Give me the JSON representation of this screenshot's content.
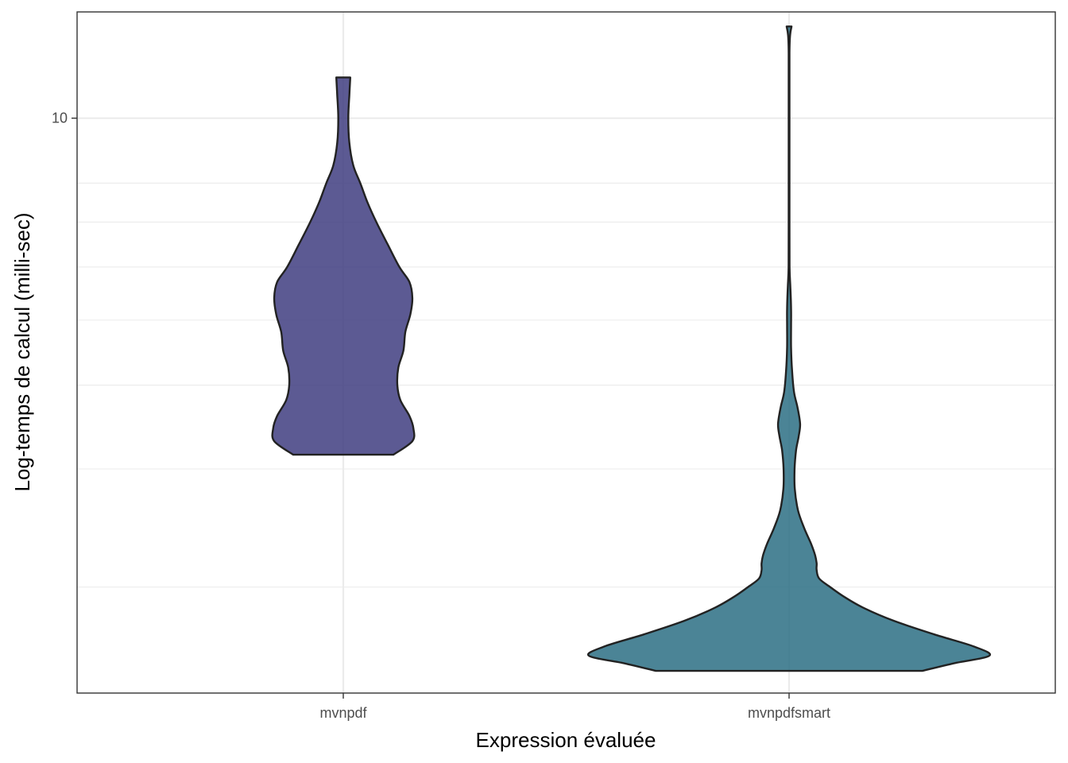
{
  "chart_data": {
    "type": "violin",
    "xlabel": "Expression évaluée",
    "ylabel": "Log-temps de calcul (milli-sec)",
    "y_scale": "log10",
    "ylim": [
      1.39,
      14.4
    ],
    "y_major_ticks": [
      10
    ],
    "y_major_tick_labels": [
      "10"
    ],
    "y_minor_gridlines": [
      2,
      3,
      4,
      5,
      6,
      7,
      8
    ],
    "grid": true,
    "categories": [
      "mvnpdf",
      "mvnpdfsmart"
    ],
    "series": [
      {
        "category": "mvnpdf",
        "color": "#3F3D80",
        "min": 3.15,
        "max": 11.5,
        "density_profile": [
          [
            3.15,
            0.5
          ],
          [
            3.3,
            0.69
          ],
          [
            3.45,
            0.7
          ],
          [
            3.6,
            0.66
          ],
          [
            3.8,
            0.57
          ],
          [
            4.0,
            0.54
          ],
          [
            4.25,
            0.55
          ],
          [
            4.5,
            0.6
          ],
          [
            4.8,
            0.62
          ],
          [
            5.1,
            0.67
          ],
          [
            5.4,
            0.69
          ],
          [
            5.7,
            0.66
          ],
          [
            6.0,
            0.56
          ],
          [
            6.5,
            0.44
          ],
          [
            7.0,
            0.33
          ],
          [
            7.5,
            0.24
          ],
          [
            8.0,
            0.17
          ],
          [
            8.5,
            0.1
          ],
          [
            9.2,
            0.06
          ],
          [
            10.0,
            0.05
          ],
          [
            10.8,
            0.06
          ],
          [
            11.5,
            0.07
          ]
        ]
      },
      {
        "category": "mvnpdfsmart",
        "color": "#2B6F84",
        "min": 1.5,
        "max": 13.7,
        "density_profile": [
          [
            1.5,
            1.33
          ],
          [
            1.54,
            1.65
          ],
          [
            1.58,
            2.0
          ],
          [
            1.63,
            1.85
          ],
          [
            1.7,
            1.45
          ],
          [
            1.78,
            1.05
          ],
          [
            1.86,
            0.75
          ],
          [
            1.93,
            0.56
          ],
          [
            2.0,
            0.41
          ],
          [
            2.06,
            0.3
          ],
          [
            2.12,
            0.275
          ],
          [
            2.17,
            0.275
          ],
          [
            2.23,
            0.26
          ],
          [
            2.32,
            0.22
          ],
          [
            2.45,
            0.15
          ],
          [
            2.6,
            0.09
          ],
          [
            2.8,
            0.057
          ],
          [
            3.0,
            0.055
          ],
          [
            3.2,
            0.07
          ],
          [
            3.35,
            0.095
          ],
          [
            3.5,
            0.11
          ],
          [
            3.7,
            0.085
          ],
          [
            3.9,
            0.05
          ],
          [
            4.2,
            0.03
          ],
          [
            4.55,
            0.02
          ],
          [
            4.9,
            0.02
          ],
          [
            5.2,
            0.02
          ],
          [
            5.6,
            0.013
          ],
          [
            6.0,
            0.005
          ],
          [
            7.0,
            0.004
          ],
          [
            9.0,
            0.004
          ],
          [
            11.0,
            0.004
          ],
          [
            12.5,
            0.004
          ],
          [
            13.3,
            0.01
          ],
          [
            13.7,
            0.025
          ]
        ]
      }
    ]
  }
}
